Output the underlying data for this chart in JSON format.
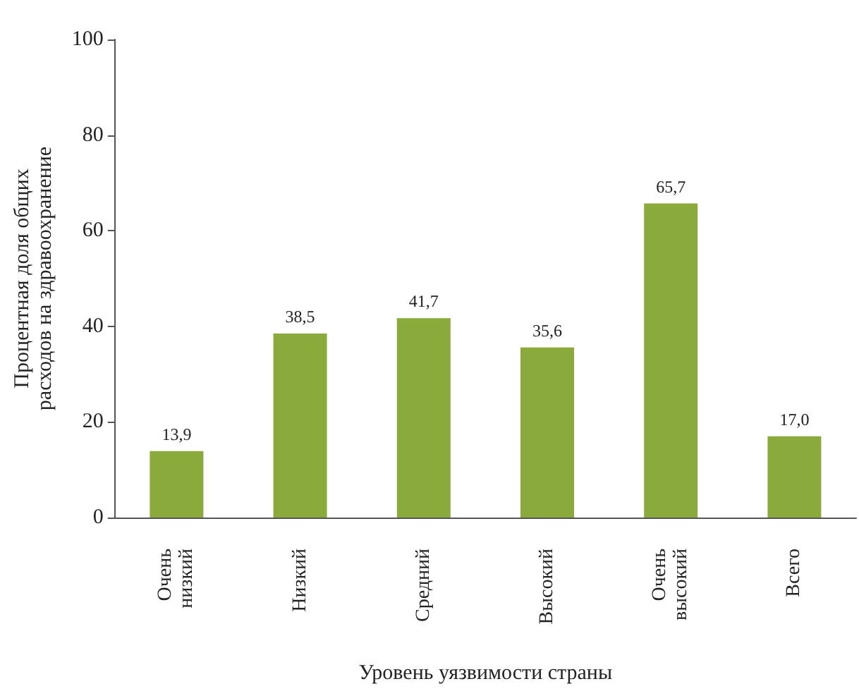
{
  "chart_data": {
    "type": "bar",
    "xlabel": "Уровень уязвимости страны",
    "ylabel": "Процентная доля общих расходов на здравоохранение",
    "categories": [
      "Очень низкий",
      "Низкий",
      "Средний",
      "Высокий",
      "Очень высокий",
      "Всего"
    ],
    "values": [
      13.9,
      38.5,
      41.7,
      35.6,
      65.7,
      17.0
    ],
    "value_labels": [
      "13,9",
      "38,5",
      "41,7",
      "35,6",
      "65,7",
      "17,0"
    ],
    "color": "#8aab3c",
    "ylim": [
      0,
      100
    ],
    "yticks": [
      0,
      20,
      40,
      60,
      80,
      100
    ]
  }
}
